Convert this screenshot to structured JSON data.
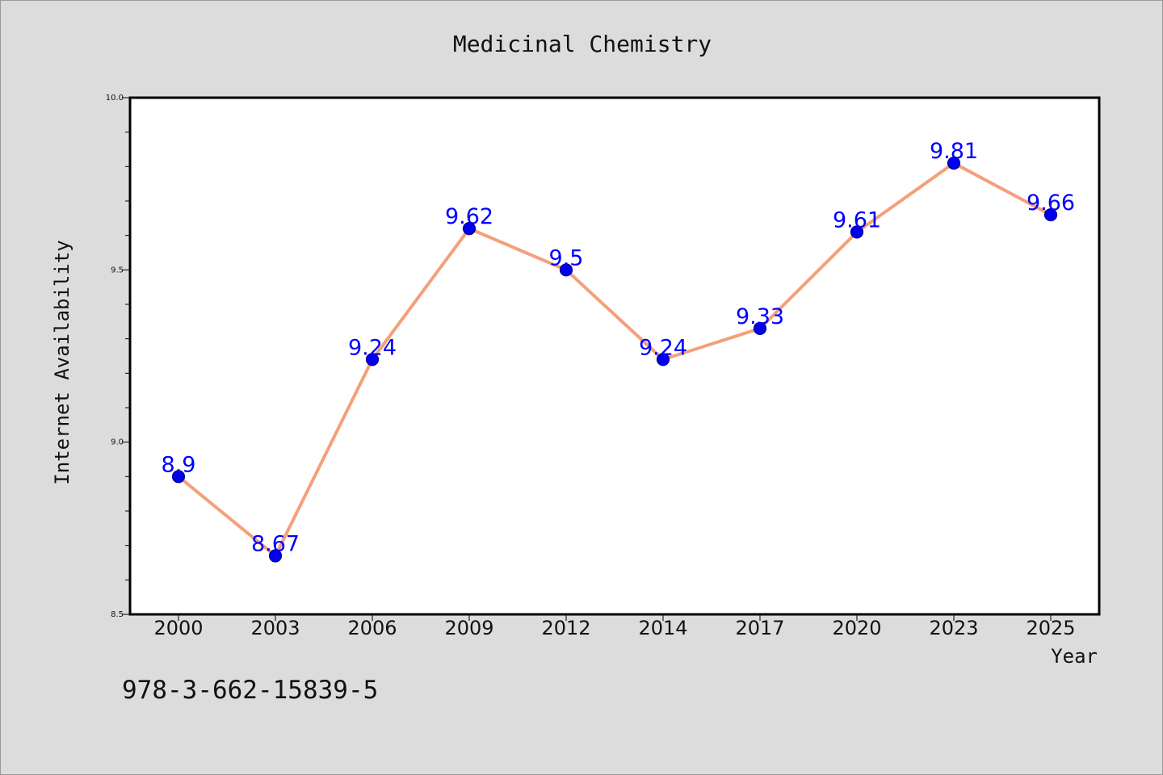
{
  "chart_data": {
    "type": "line",
    "title": "Medicinal Chemistry",
    "xlabel": "Year",
    "ylabel": "Internet Availability",
    "categories": [
      "2000",
      "2003",
      "2006",
      "2009",
      "2012",
      "2014",
      "2017",
      "2020",
      "2023",
      "2025"
    ],
    "values": [
      8.9,
      8.67,
      9.24,
      9.62,
      9.5,
      9.24,
      9.33,
      9.61,
      9.81,
      9.66
    ],
    "data_labels": [
      "8.9",
      "8.67",
      "9.24",
      "9.62",
      "9.5",
      "9.24",
      "9.33",
      "9.61",
      "9.81",
      "9.66"
    ],
    "ylim": [
      8.5,
      10.0
    ],
    "yticks": [
      "8.5",
      "9.0",
      "9.5",
      "10.0"
    ],
    "grid": false,
    "legend": "none",
    "annotation": "978-3-662-15839-5",
    "colors": {
      "background": "#dcdcdc",
      "plot_background": "#ffffff",
      "line": "#f4a07a",
      "marker_fill": "#0000ee",
      "marker_edge": "#00008b",
      "data_label": "#0000ff",
      "text": "#111111"
    }
  }
}
